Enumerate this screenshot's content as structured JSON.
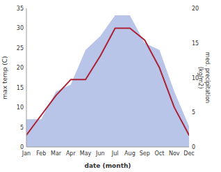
{
  "chart_data": {
    "type": "line",
    "categories": [
      "Jan",
      "Feb",
      "Mar",
      "Apr",
      "May",
      "Jun",
      "Jul",
      "Aug",
      "Sep",
      "Oct",
      "Nov",
      "Dec"
    ],
    "series": [
      {
        "type": "area",
        "axis": "y2",
        "color": "#b8c4e8",
        "values": [
          4,
          4,
          8,
          9,
          14,
          16,
          19,
          19,
          15,
          14,
          8,
          3
        ]
      },
      {
        "type": "line",
        "color": "#aa2233",
        "values": [
          3,
          8,
          13,
          17,
          17,
          23,
          30,
          30,
          27,
          20,
          10,
          3
        ]
      }
    ],
    "xlabel": "date (month)",
    "ylabel": "max temp (C)",
    "y2label": "med. precipitation\n(kg/m2)",
    "ylim": [
      0,
      35
    ],
    "yticks": [
      0,
      5,
      10,
      15,
      20,
      25,
      30,
      35
    ],
    "y2lim": [
      0,
      20
    ],
    "y2ticks": [
      0,
      5,
      10,
      15,
      20
    ],
    "grid": false
  }
}
